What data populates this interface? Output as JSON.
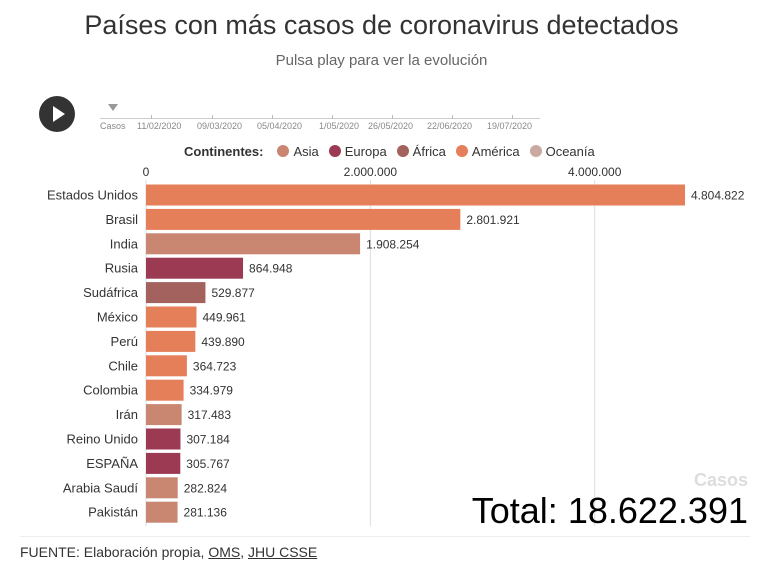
{
  "header": {
    "title": "Países con más casos de coronavirus detectados",
    "subtitle": "Pulsa play para ver la evolución"
  },
  "timeline": {
    "labels": [
      "Casos",
      "11/02/2020",
      "09/03/2020",
      "05/04/2020",
      "1/05/2020",
      "26/05/2020",
      "22/06/2020",
      "19/07/2020"
    ]
  },
  "legend": {
    "title": "Continentes:",
    "items": [
      {
        "label": "Asia",
        "color": "#c98670"
      },
      {
        "label": "Europa",
        "color": "#9b3a52"
      },
      {
        "label": "África",
        "color": "#a4625f"
      },
      {
        "label": "América",
        "color": "#e47f5a"
      },
      {
        "label": "Oceanía",
        "color": "#c9aaa0"
      }
    ]
  },
  "totals": {
    "casos_label": "Casos",
    "total_text": "Total: 18.622.391"
  },
  "source": {
    "prefix": "FUENTE: Elaboración propia, ",
    "link1": "OMS",
    "separator": ", ",
    "link2": "JHU CSSE"
  },
  "chart_data": {
    "type": "bar",
    "orientation": "horizontal",
    "x_ticks": [
      0,
      2000000,
      4000000
    ],
    "x_tick_labels": [
      "0",
      "2.000.000",
      "4.000.000"
    ],
    "xlim": [
      0,
      4804822
    ],
    "grid": true,
    "categories": [
      "Estados Unidos",
      "Brasil",
      "India",
      "Rusia",
      "Sudáfrica",
      "México",
      "Perú",
      "Chile",
      "Colombia",
      "Irán",
      "Reino Unido",
      "ESPAÑA",
      "Arabia Saudí",
      "Pakistán"
    ],
    "values": [
      4804822,
      2801921,
      1908254,
      864948,
      529877,
      449961,
      439890,
      364723,
      334979,
      317483,
      307184,
      305767,
      282824,
      281136
    ],
    "value_labels": [
      "4.804.822",
      "2.801.921",
      "1.908.254",
      "864.948",
      "529.877",
      "449.961",
      "439.890",
      "364.723",
      "334.979",
      "317.483",
      "307.184",
      "305.767",
      "282.824",
      "281.136"
    ],
    "continents": [
      "América",
      "América",
      "Asia",
      "Europa",
      "África",
      "América",
      "América",
      "América",
      "América",
      "Asia",
      "Europa",
      "Europa",
      "Asia",
      "Asia"
    ]
  }
}
